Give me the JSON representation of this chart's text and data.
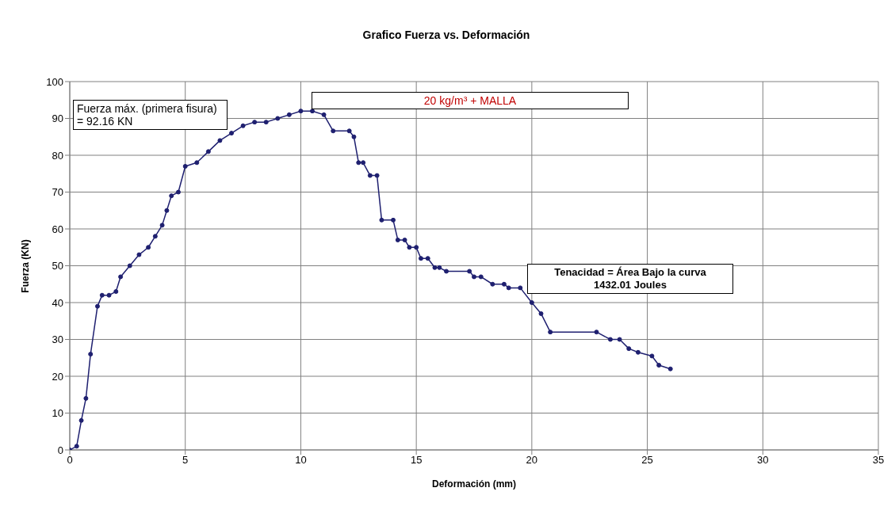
{
  "chart_data": {
    "type": "line",
    "title": "Grafico Fuerza vs. Deformación",
    "xlabel": "Deformación  (mm)",
    "ylabel": "Fuerza (KN)",
    "annotations": [
      "Fuerza máx. (primera fisura) = 92.16 KN",
      "20 kg/m³ + MALLA",
      "Tenacidad = Área Bajo la curva\n1432.01 Joules"
    ],
    "xlim": [
      0,
      35
    ],
    "xticks": [
      0,
      5,
      10,
      15,
      20,
      25,
      30,
      35
    ],
    "ylim": [
      0,
      100
    ],
    "yticks": [
      0,
      10,
      20,
      30,
      40,
      50,
      60,
      70,
      80,
      90,
      100
    ],
    "grid": true,
    "legend": false,
    "marker": "circle",
    "line_style": "solid",
    "series": [
      {
        "color": "#1f2070",
        "x": [
          0,
          0.3,
          0.5,
          0.7,
          0.9,
          1.2,
          1.4,
          1.7,
          2,
          2.2,
          2.6,
          3,
          3.4,
          3.7,
          4,
          4.2,
          4.4,
          4.7,
          5,
          5.5,
          6,
          6.5,
          7,
          7.5,
          8,
          8.5,
          9,
          9.5,
          10,
          10.5,
          11,
          11.4,
          12.1,
          12.3,
          12.5,
          12.7,
          13,
          13.3,
          13.5,
          14,
          14.2,
          14.5,
          14.7,
          15,
          15.2,
          15.5,
          15.8,
          16,
          16.3,
          17.3,
          17.5,
          17.8,
          18.3,
          18.8,
          19,
          19.5,
          20,
          20.4,
          20.8,
          22.8,
          23.4,
          23.8,
          24.2,
          24.6,
          25.2,
          25.5,
          26
        ],
        "values": [
          0,
          1,
          8,
          14,
          26,
          39,
          42,
          42,
          43,
          47,
          50,
          53,
          55,
          58,
          61,
          65,
          69,
          70,
          77,
          78,
          81,
          84,
          86,
          88,
          89,
          89,
          90,
          91,
          92,
          92,
          91,
          86.6,
          86.6,
          85,
          78,
          78,
          74.5,
          74.5,
          62.4,
          62.4,
          57,
          57,
          55,
          55,
          52,
          52,
          49.5,
          49.5,
          48.5,
          48.5,
          47,
          47,
          45,
          45,
          44,
          44,
          40,
          37,
          32,
          32,
          30,
          30,
          27.5,
          26.5,
          25.5,
          23,
          22
        ]
      }
    ]
  }
}
